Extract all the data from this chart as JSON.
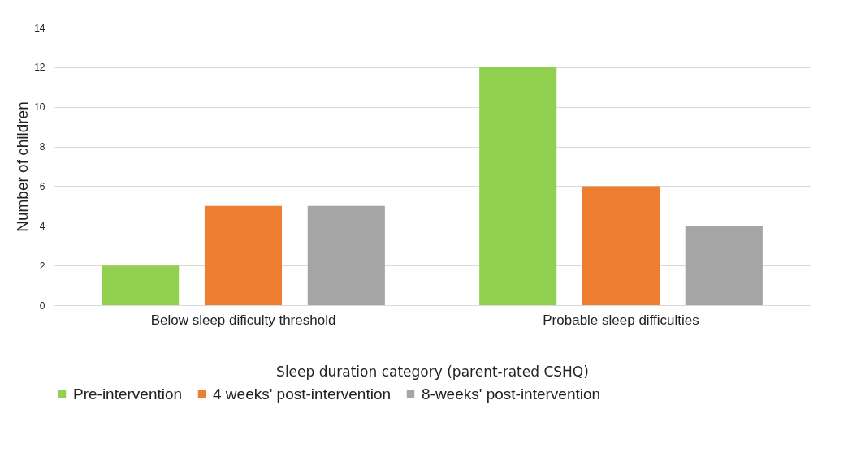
{
  "chart_data": {
    "type": "bar",
    "xlabel": "Sleep duration category (parent-rated CSHQ)",
    "ylabel": "Number of children",
    "categories": [
      "Below sleep dificulty threshold",
      "Probable sleep difficulties"
    ],
    "series": [
      {
        "name": "Pre-intervention",
        "color": "#92d050",
        "values": [
          2,
          12
        ]
      },
      {
        "name": "4 weeks' post-intervention",
        "color": "#ed7d31",
        "values": [
          5,
          6
        ]
      },
      {
        "name": "8-weeks' post-intervention",
        "color": "#a5a5a5",
        "values": [
          5,
          4
        ]
      }
    ],
    "ylim": [
      0,
      14
    ],
    "yticks": [
      0,
      2,
      4,
      6,
      8,
      10,
      12,
      14
    ],
    "grid": "y",
    "legend": "bottom"
  }
}
